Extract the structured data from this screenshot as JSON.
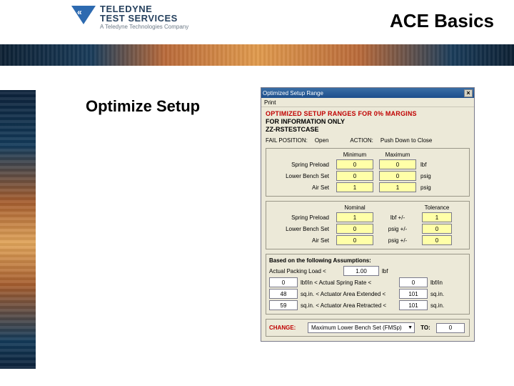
{
  "header": {
    "company_l1": "TELEDYNE",
    "company_l2": "TEST SERVICES",
    "company_l3": "A Teledyne Technologies Company",
    "title": "ACE Basics"
  },
  "section_title": "Optimize Setup",
  "dialog": {
    "titlebar": "Optimized Setup Range",
    "close": "×",
    "menu_print": "Print",
    "h1": "OPTIMIZED SETUP RANGES FOR 0% MARGINS",
    "h2": "FOR INFORMATION ONLY",
    "h3": "ZZ-RSTESTCASE",
    "fail_pos_lbl": "FAIL POSITION:",
    "fail_pos_val": "Open",
    "action_lbl": "ACTION:",
    "action_val": "Push Down to Close",
    "panel1": {
      "col_min": "Minimum",
      "col_max": "Maximum",
      "rows": [
        {
          "lab": "Spring Preload",
          "min": "0",
          "max": "0",
          "unit": "lbf"
        },
        {
          "lab": "Lower Bench Set",
          "min": "0",
          "max": "0",
          "unit": "psig"
        },
        {
          "lab": "Air Set",
          "min": "1",
          "max": "1",
          "unit": "psig"
        }
      ]
    },
    "panel2": {
      "col_nom": "Nominal",
      "col_tol": "Tolerance",
      "rows": [
        {
          "lab": "Spring Preload",
          "nom": "1",
          "mid": "lbf  +/-",
          "tol": "1"
        },
        {
          "lab": "Lower Bench Set",
          "nom": "0",
          "mid": "psig +/-",
          "tol": "0"
        },
        {
          "lab": "Air Set",
          "nom": "0",
          "mid": "psig +/-",
          "tol": "0"
        }
      ]
    },
    "panel3": {
      "assume": "Based on the following Assumptions:",
      "pack_lbl": "Actual Packing Load <",
      "pack_val": "1.00",
      "pack_unit": "lbf",
      "sr_left": "0",
      "sr_mid": "lbf/in   < Actual Spring Rate <",
      "sr_right": "0",
      "sr_unit": "lbf/in",
      "ae_left": "48",
      "ae_mid": "sq.in. < Actuator Area Extended <",
      "ae_right": "101",
      "ae_unit": "sq.in.",
      "ar_left": "59",
      "ar_mid": "sq.in. < Actuator Area Retracted <",
      "ar_right": "101",
      "ar_unit": "sq.in."
    },
    "change": {
      "label": "CHANGE:",
      "option": "Maximum Lower Bench Set (FMSp)",
      "to": "TO:",
      "val": "0"
    }
  }
}
